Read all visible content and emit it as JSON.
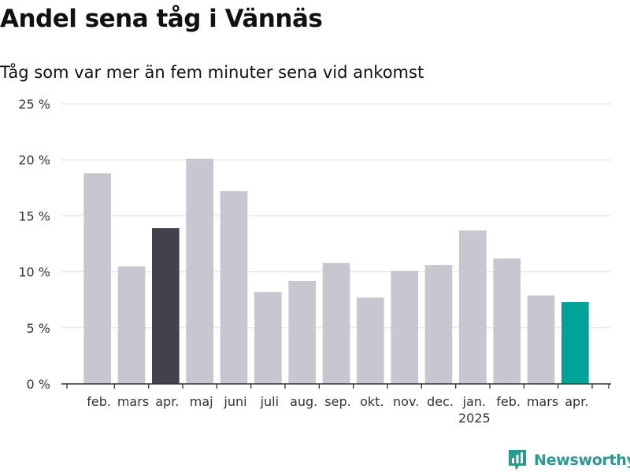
{
  "title": "Andel sena tåg i Vännäs",
  "subtitle": "Tåg som var mer än fem minuter sena vid ankomst",
  "brand": {
    "name": "Newsworthy",
    "logo_icon": "newsworthy-logo-icon"
  },
  "colors": {
    "bar_default": "#c8c7d1",
    "bar_highlight": "#42414d",
    "bar_latest": "#00a397",
    "grid": "#dddddd",
    "axis": "#333333",
    "text": "#333333",
    "brand": "#2b9a8e"
  },
  "chart_data": {
    "type": "bar",
    "title": "Andel sena tåg i Vännäs",
    "subtitle": "Tåg som var mer än fem minuter sena vid ankomst",
    "xlabel": "",
    "ylabel": "",
    "ylim": [
      0,
      25
    ],
    "yticks": [
      0,
      5,
      10,
      15,
      20,
      25
    ],
    "ytick_labels": [
      "0 %",
      "5 %",
      "10 %",
      "15 %",
      "20 %",
      "25 %"
    ],
    "grid": true,
    "categories": [
      "feb.",
      "mars",
      "apr.",
      "maj",
      "juni",
      "juli",
      "aug.",
      "sep.",
      "okt.",
      "nov.",
      "dec.",
      "jan.",
      "feb.",
      "mars",
      "apr."
    ],
    "year_labels": [
      {
        "category_index": 11,
        "label": "2025"
      }
    ],
    "values": [
      18.8,
      10.5,
      13.9,
      20.1,
      17.2,
      8.2,
      9.2,
      10.8,
      7.7,
      10.1,
      10.6,
      13.7,
      11.2,
      7.9,
      7.3
    ],
    "highlight": [
      {
        "index": 2,
        "color": "#42414d"
      },
      {
        "index": 14,
        "color": "#00a397"
      }
    ]
  }
}
